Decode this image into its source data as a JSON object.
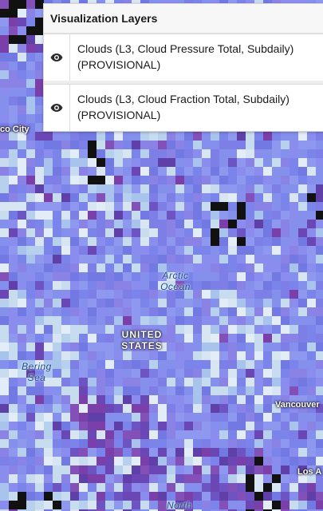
{
  "panel": {
    "title": "Visualization Layers",
    "layers": [
      {
        "label": "Clouds (L3, Cloud Pressure Total, Subdaily) (PROVISIONAL)",
        "visibility_icon": "eye-icon"
      },
      {
        "label": "Clouds (L3, Cloud Fraction Total, Subdaily) (PROVISIONAL)",
        "visibility_icon": "eye-icon"
      }
    ]
  },
  "map": {
    "labels": {
      "city_mexico": "co City",
      "arctic_ocean": "Arctic Ocean",
      "united_states": "UNITED STATES",
      "bering_sea": "Bering Sea",
      "vancouver": "Vancouver",
      "los_angeles": "Los A",
      "north": "North"
    },
    "colors": {
      "cloud_violet": "#7e87ea",
      "cloud_light": "#c9ddf0",
      "cloud_deep": "#7a3fa8",
      "nodata": "#111111"
    }
  }
}
